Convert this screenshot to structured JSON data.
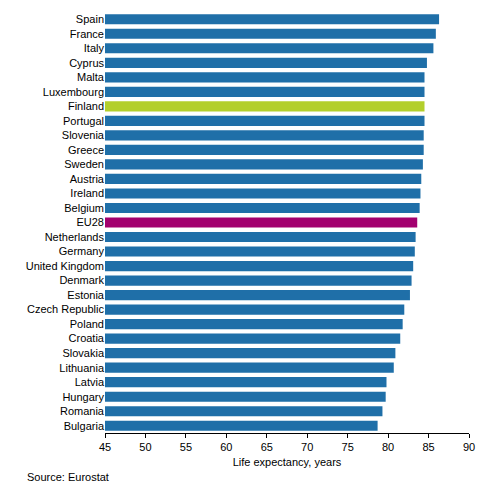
{
  "chart_data": {
    "type": "bar",
    "orientation": "horizontal",
    "categories": [
      "Spain",
      "France",
      "Italy",
      "Cyprus",
      "Malta",
      "Luxembourg",
      "Finland",
      "Portugal",
      "Slovenia",
      "Greece",
      "Sweden",
      "Austria",
      "Ireland",
      "Belgium",
      "EU28",
      "Netherlands",
      "Germany",
      "United Kingdom",
      "Denmark",
      "Estonia",
      "Czech Republic",
      "Poland",
      "Croatia",
      "Slovakia",
      "Lithuania",
      "Latvia",
      "Hungary",
      "Romania",
      "Bulgaria"
    ],
    "values": [
      86.3,
      85.9,
      85.6,
      84.8,
      84.5,
      84.5,
      84.5,
      84.5,
      84.4,
      84.4,
      84.3,
      84.1,
      84.0,
      83.9,
      83.6,
      83.4,
      83.3,
      83.1,
      82.9,
      82.7,
      82.0,
      81.8,
      81.5,
      80.9,
      80.7,
      79.8,
      79.7,
      79.3,
      78.7
    ],
    "colors": [
      "#1f6fa8",
      "#1f6fa8",
      "#1f6fa8",
      "#1f6fa8",
      "#1f6fa8",
      "#1f6fa8",
      "#b3cf2b",
      "#1f6fa8",
      "#1f6fa8",
      "#1f6fa8",
      "#1f6fa8",
      "#1f6fa8",
      "#1f6fa8",
      "#1f6fa8",
      "#a3006f",
      "#1f6fa8",
      "#1f6fa8",
      "#1f6fa8",
      "#1f6fa8",
      "#1f6fa8",
      "#1f6fa8",
      "#1f6fa8",
      "#1f6fa8",
      "#1f6fa8",
      "#1f6fa8",
      "#1f6fa8",
      "#1f6fa8",
      "#1f6fa8",
      "#1f6fa8"
    ],
    "x_label": "Life expectancy, years",
    "xlim": [
      45,
      90
    ],
    "xticks": [
      45,
      50,
      55,
      60,
      65,
      70,
      75,
      80,
      85,
      90
    ],
    "grid": false,
    "annotations": [
      "Source: Eurostat"
    ]
  }
}
